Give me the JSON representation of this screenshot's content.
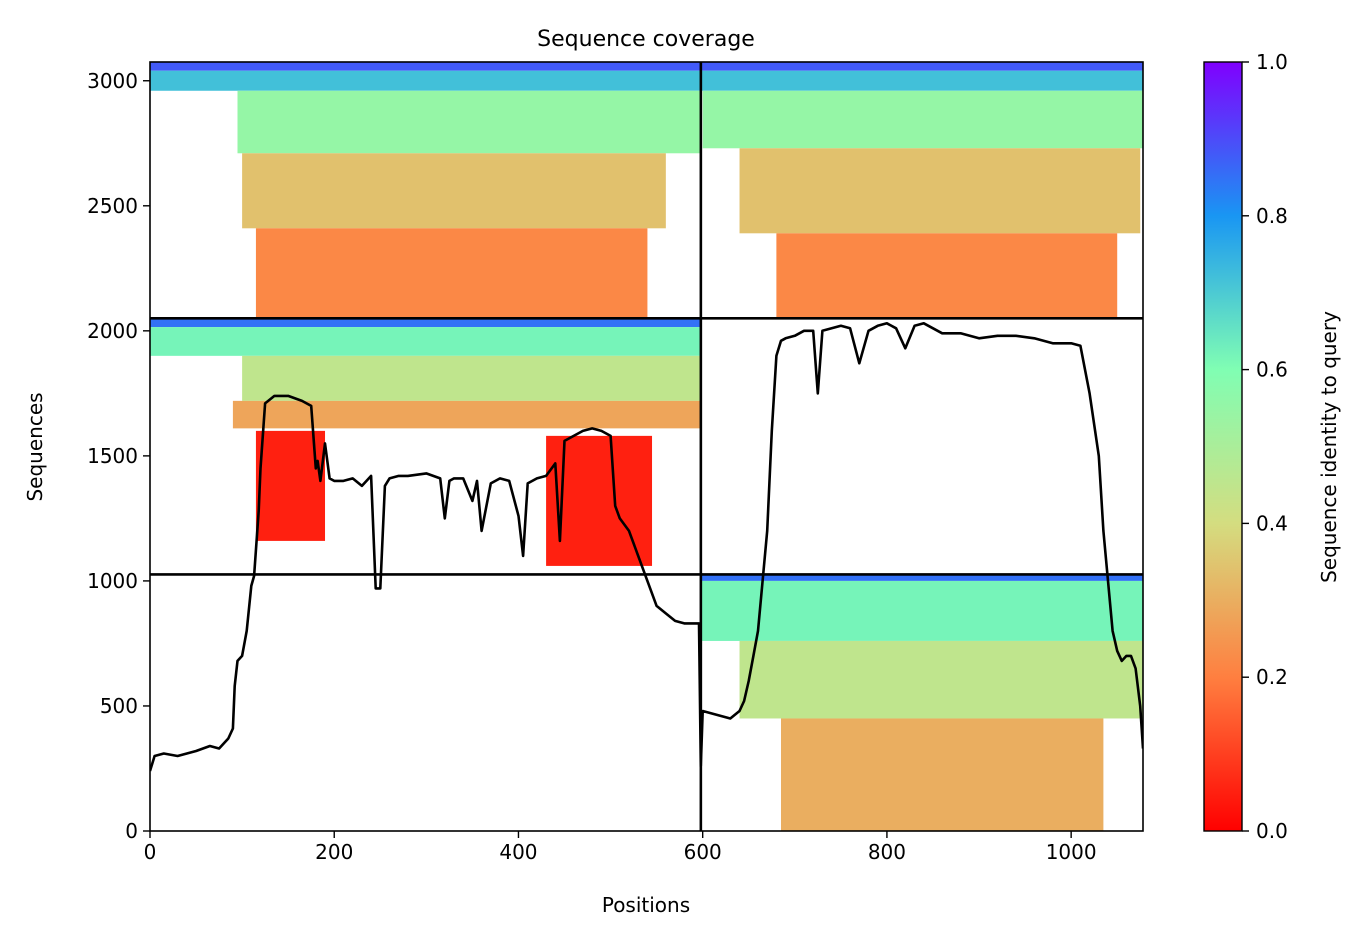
{
  "chart_data": {
    "type": "heatmap",
    "title": "Sequence coverage",
    "xlabel": "Positions",
    "ylabel": "Sequences",
    "xlim": [
      0,
      1078
    ],
    "ylim": [
      0,
      3075
    ],
    "x_ticks": [
      0,
      200,
      400,
      600,
      800,
      1000
    ],
    "y_ticks": [
      0,
      500,
      1000,
      1500,
      2000,
      2500,
      3000
    ],
    "colorbar": {
      "label": "Sequence identity to query",
      "range": [
        0.0,
        1.0
      ],
      "ticks": [
        0.0,
        0.2,
        0.4,
        0.6,
        0.8,
        1.0
      ],
      "colormap": "rainbow",
      "stops": [
        "#ff0000",
        "#ff7f40",
        "#d4dd80",
        "#80feb3",
        "#1996f3",
        "#8000ff"
      ]
    },
    "chain_boundaries": {
      "x": [
        598
      ],
      "y": [
        1026,
        2050
      ]
    },
    "blocks": [
      {
        "name": "chain1-chain1",
        "x_range": [
          0,
          598
        ],
        "y_range": [
          2050,
          3075
        ],
        "bands": [
          {
            "y": [
              3040,
              3075
            ],
            "x": [
              0,
              598
            ],
            "identity": 0.88
          },
          {
            "y": [
              2960,
              3040
            ],
            "x": [
              0,
              598
            ],
            "identity": 0.72
          },
          {
            "y": [
              2710,
              2960
            ],
            "x": [
              95,
              598
            ],
            "identity": 0.55
          },
          {
            "y": [
              2410,
              2710
            ],
            "x": [
              100,
              560
            ],
            "identity": 0.34
          },
          {
            "y": [
              2050,
              2410
            ],
            "x": [
              115,
              540
            ],
            "identity": 0.22
          }
        ]
      },
      {
        "name": "chain2-chain2",
        "x_range": [
          598,
          1078
        ],
        "y_range": [
          2050,
          3075
        ],
        "bands": [
          {
            "y": [
              3040,
              3075
            ],
            "x": [
              598,
              1078
            ],
            "identity": 0.88
          },
          {
            "y": [
              2960,
              3040
            ],
            "x": [
              598,
              1078
            ],
            "identity": 0.72
          },
          {
            "y": [
              2730,
              2960
            ],
            "x": [
              600,
              1078
            ],
            "identity": 0.55
          },
          {
            "y": [
              2390,
              2730
            ],
            "x": [
              640,
              1075
            ],
            "identity": 0.34
          },
          {
            "y": [
              2050,
              2390
            ],
            "x": [
              680,
              1050
            ],
            "identity": 0.22
          }
        ]
      },
      {
        "name": "chain1-chain1-second",
        "x_range": [
          0,
          598
        ],
        "y_range": [
          1026,
          2050
        ],
        "bands": [
          {
            "y": [
              2015,
              2050
            ],
            "x": [
              0,
              598
            ],
            "identity": 0.85
          },
          {
            "y": [
              1900,
              2015
            ],
            "x": [
              0,
              598
            ],
            "identity": 0.62
          },
          {
            "y": [
              1720,
              1900
            ],
            "x": [
              100,
              598
            ],
            "identity": 0.45
          },
          {
            "y": [
              1610,
              1720
            ],
            "x": [
              90,
              598
            ],
            "identity": 0.28
          },
          {
            "y": [
              1160,
              1600
            ],
            "x": [
              115,
              190
            ],
            "identity": 0.05
          },
          {
            "y": [
              1060,
              1580
            ],
            "x": [
              430,
              545
            ],
            "identity": 0.05
          }
        ]
      },
      {
        "name": "chain2-chain2-second",
        "x_range": [
          598,
          1078
        ],
        "y_range": [
          0,
          1026
        ],
        "bands": [
          {
            "y": [
              1000,
              1026
            ],
            "x": [
              598,
              1078
            ],
            "identity": 0.85
          },
          {
            "y": [
              760,
              1000
            ],
            "x": [
              598,
              1078
            ],
            "identity": 0.62
          },
          {
            "y": [
              450,
              760
            ],
            "x": [
              640,
              1078
            ],
            "identity": 0.45
          },
          {
            "y": [
              0,
              450
            ],
            "x": [
              685,
              1035
            ],
            "identity": 0.3
          }
        ]
      }
    ],
    "coverage_line": {
      "color": "#000000",
      "x": [
        0,
        5,
        15,
        30,
        50,
        65,
        75,
        85,
        90,
        92,
        95,
        100,
        105,
        110,
        113,
        118,
        120,
        125,
        135,
        150,
        165,
        175,
        180,
        182,
        185,
        190,
        195,
        200,
        210,
        220,
        230,
        240,
        245,
        250,
        255,
        260,
        270,
        280,
        300,
        315,
        320,
        325,
        330,
        340,
        350,
        355,
        360,
        370,
        380,
        390,
        400,
        405,
        410,
        420,
        430,
        440,
        445,
        450,
        460,
        470,
        480,
        490,
        500,
        505,
        510,
        520,
        530,
        540,
        550,
        560,
        570,
        580,
        590,
        596,
        598,
        600,
        610,
        620,
        630,
        640,
        645,
        650,
        655,
        660,
        665,
        670,
        675,
        680,
        685,
        690,
        700,
        710,
        720,
        725,
        730,
        750,
        760,
        770,
        780,
        790,
        800,
        810,
        820,
        830,
        840,
        850,
        860,
        880,
        900,
        920,
        940,
        960,
        980,
        1000,
        1010,
        1020,
        1030,
        1035,
        1040,
        1045,
        1050,
        1055,
        1060,
        1065,
        1070,
        1075,
        1078
      ],
      "y": [
        240,
        300,
        310,
        300,
        320,
        340,
        330,
        370,
        410,
        580,
        680,
        700,
        800,
        980,
        1020,
        1280,
        1450,
        1710,
        1740,
        1740,
        1720,
        1700,
        1450,
        1480,
        1400,
        1550,
        1410,
        1400,
        1400,
        1410,
        1380,
        1420,
        970,
        970,
        1380,
        1410,
        1420,
        1420,
        1430,
        1410,
        1250,
        1400,
        1410,
        1410,
        1320,
        1400,
        1200,
        1390,
        1410,
        1400,
        1260,
        1100,
        1390,
        1410,
        1420,
        1470,
        1160,
        1560,
        1580,
        1600,
        1610,
        1600,
        1580,
        1300,
        1250,
        1200,
        1100,
        1000,
        900,
        870,
        840,
        830,
        830,
        830,
        260,
        480,
        470,
        460,
        450,
        480,
        520,
        600,
        700,
        800,
        1000,
        1200,
        1600,
        1900,
        1960,
        1970,
        1980,
        2000,
        2000,
        1750,
        2000,
        2020,
        2010,
        1870,
        2000,
        2020,
        2030,
        2010,
        1930,
        2020,
        2030,
        2010,
        1990,
        1990,
        1970,
        1980,
        1980,
        1970,
        1950,
        1950,
        1940,
        1750,
        1500,
        1200,
        1000,
        800,
        720,
        680,
        700,
        700,
        650,
        500,
        330
      ]
    }
  }
}
